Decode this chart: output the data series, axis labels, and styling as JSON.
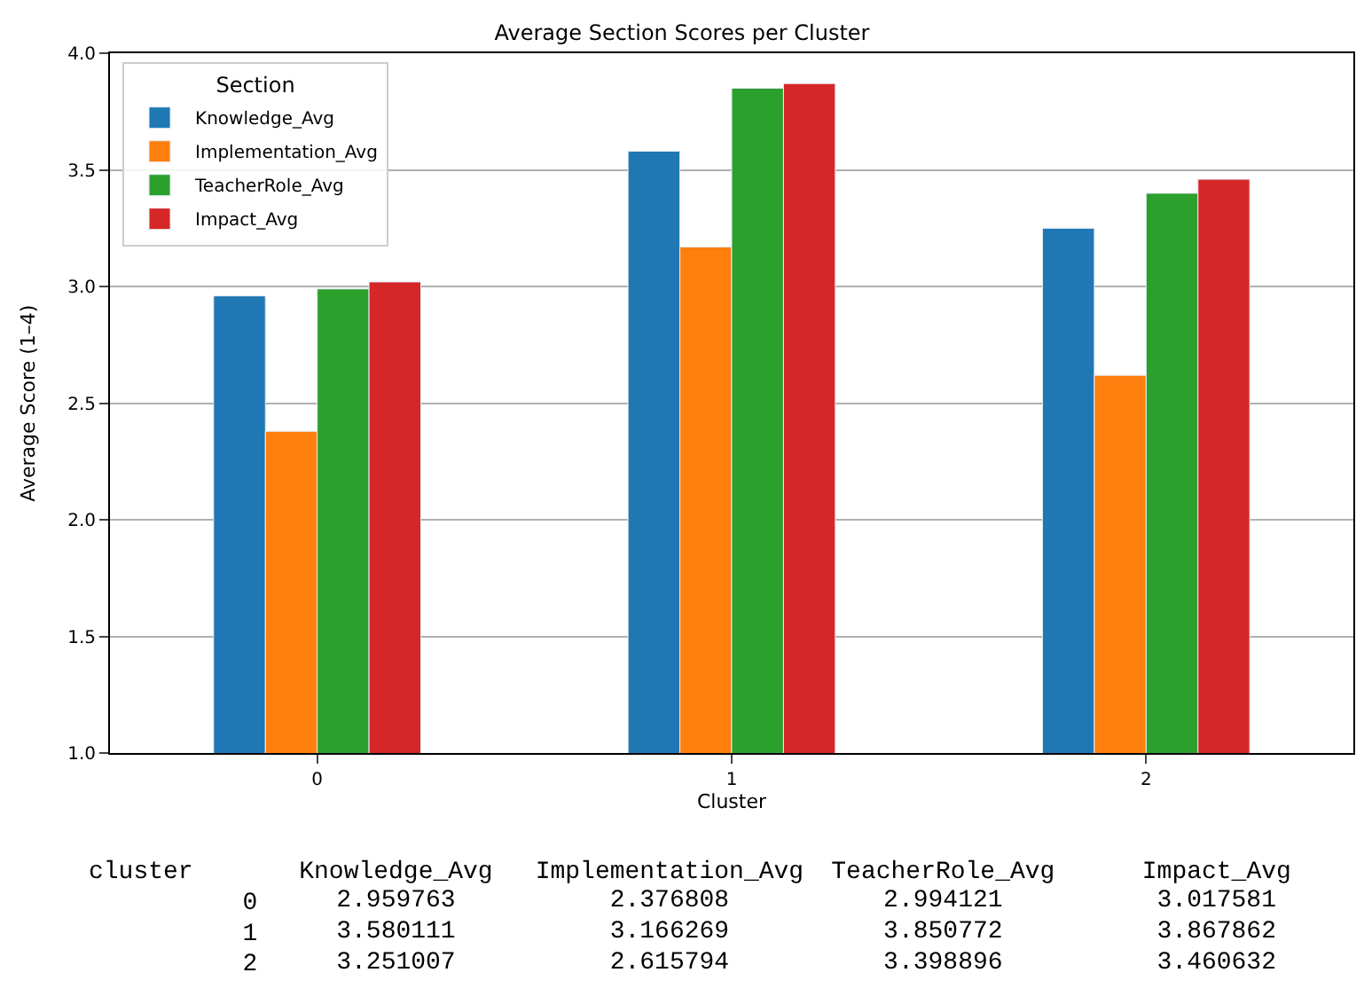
{
  "chart_data": [
    {
      "type": "bar",
      "title": "Average Section Scores per Cluster",
      "xlabel": "Cluster",
      "ylabel": "Average Score (1–4)",
      "legend_title": "Section",
      "categories": [
        "0",
        "1",
        "2"
      ],
      "series": [
        {
          "name": "Knowledge_Avg",
          "color": "#1f77b4",
          "values": [
            2.96,
            3.58,
            3.25
          ]
        },
        {
          "name": "Implementation_Avg",
          "color": "#ff7f0e",
          "values": [
            2.38,
            3.17,
            2.62
          ]
        },
        {
          "name": "TeacherRole_Avg",
          "color": "#2ca02c",
          "values": [
            2.99,
            3.85,
            3.4
          ]
        },
        {
          "name": "Impact_Avg",
          "color": "#d62728",
          "values": [
            3.02,
            3.87,
            3.46
          ]
        }
      ],
      "ylim": [
        1.0,
        4.0
      ],
      "yticks": [
        {
          "value": 1.0,
          "label": "1.0"
        },
        {
          "value": 1.5,
          "label": "1.5"
        },
        {
          "value": 2.0,
          "label": "2.0"
        },
        {
          "value": 2.5,
          "label": "2.5"
        },
        {
          "value": 3.0,
          "label": "3.0"
        },
        {
          "value": 3.5,
          "label": "3.5"
        },
        {
          "value": 4.0,
          "label": "4.0"
        }
      ],
      "grid": "y",
      "legend": "top left"
    },
    {
      "type": "heatmap",
      "ylabel": "cluster",
      "data_labels": true,
      "categories": [
        "Knowledge_Avg",
        "Implementation_Avg",
        "TeacherRole_Avg",
        "Impact_Avg"
      ],
      "y_categories": [
        "0",
        "1",
        "2"
      ],
      "cells": [
        [
          2.959763,
          2.376808,
          2.994121,
          3.017581
        ],
        [
          3.580111,
          3.166269,
          3.850772,
          3.867862
        ],
        [
          3.251007,
          2.615794,
          3.398896,
          3.460632
        ]
      ]
    }
  ]
}
